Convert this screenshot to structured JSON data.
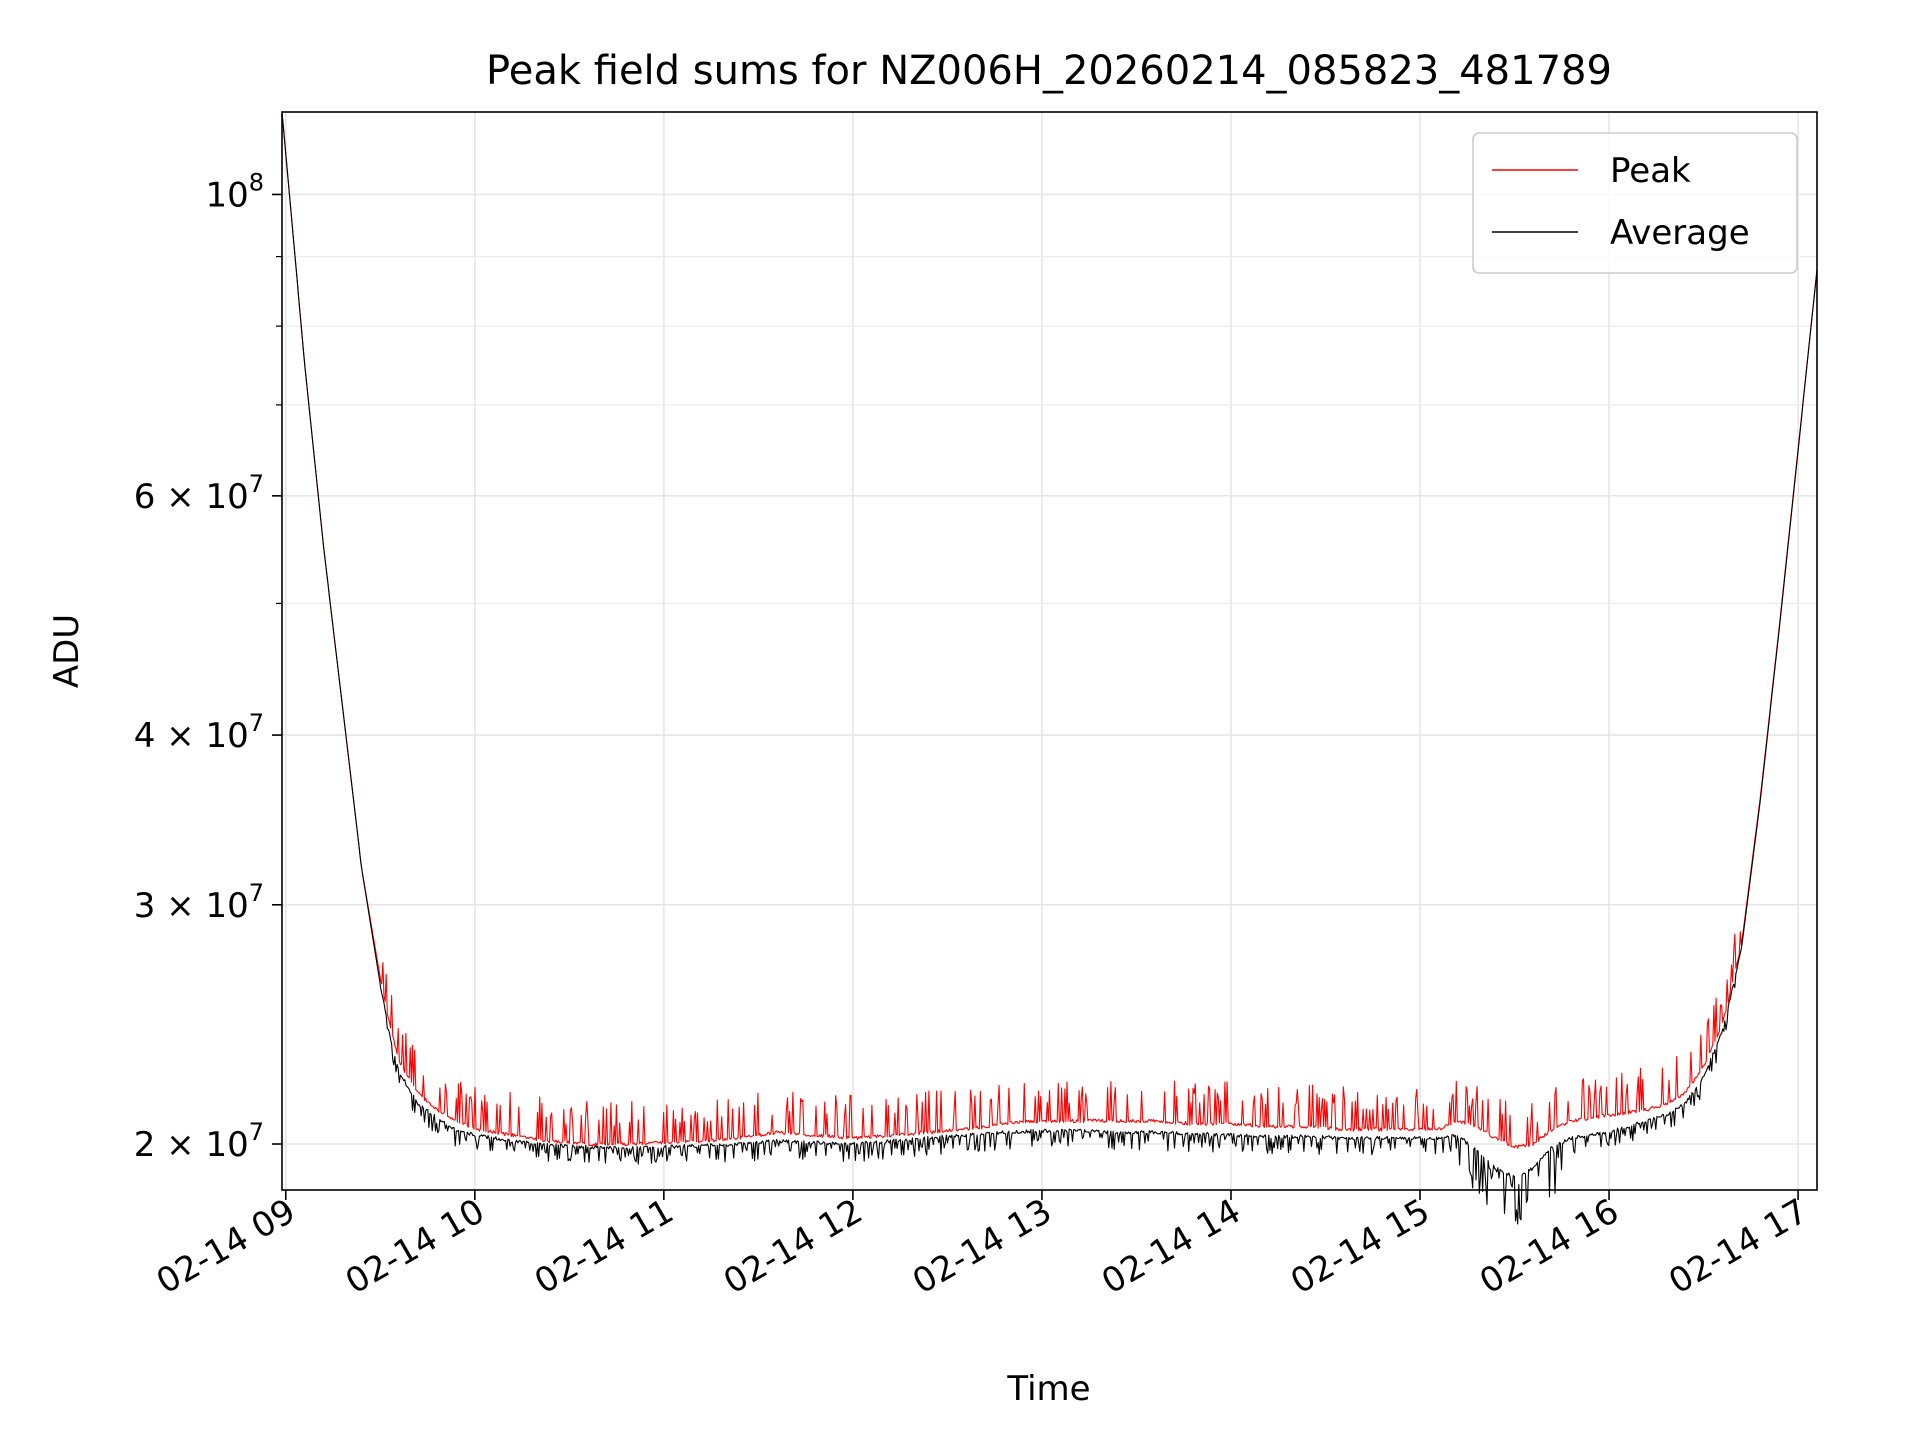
{
  "chart_data": {
    "type": "line",
    "title": "Peak field sums for NZ006H_20260214_085823_481789",
    "xlabel": "Time",
    "ylabel": "ADU",
    "y_scale": "log",
    "ylim": [
      18500000,
      115000000
    ],
    "xlim": [
      8.98,
      17.1
    ],
    "grid": true,
    "legend_position": "upper right",
    "x_ticks": [
      {
        "value": 9,
        "label": "02-14 09"
      },
      {
        "value": 10,
        "label": "02-14 10"
      },
      {
        "value": 11,
        "label": "02-14 11"
      },
      {
        "value": 12,
        "label": "02-14 12"
      },
      {
        "value": 13,
        "label": "02-14 13"
      },
      {
        "value": 14,
        "label": "02-14 14"
      },
      {
        "value": 15,
        "label": "02-14 15"
      },
      {
        "value": 16,
        "label": "02-14 16"
      },
      {
        "value": 17,
        "label": "02-14 17"
      }
    ],
    "y_ticks": [
      {
        "value": 20000000,
        "mantissa": "2",
        "exponent": "7"
      },
      {
        "value": 30000000,
        "mantissa": "3",
        "exponent": "7"
      },
      {
        "value": 40000000,
        "mantissa": "4",
        "exponent": "7"
      },
      {
        "value": 60000000,
        "mantissa": "6",
        "exponent": "7"
      },
      {
        "value": 100000000,
        "mantissa": "",
        "exponent": "8"
      }
    ],
    "y_minor_ticks": [
      50000000,
      70000000,
      80000000,
      90000000
    ],
    "series": [
      {
        "name": "Peak",
        "color": "#ff0000",
        "x": [
          8.98,
          9.1,
          9.2,
          9.3,
          9.4,
          9.5,
          9.55,
          9.6,
          9.7,
          9.8,
          9.9,
          10.0,
          10.2,
          10.4,
          10.6,
          10.8,
          11.0,
          11.2,
          11.4,
          11.6,
          11.8,
          12.0,
          12.2,
          12.4,
          12.6,
          12.8,
          13.0,
          13.2,
          13.4,
          13.6,
          13.8,
          14.0,
          14.2,
          14.4,
          14.6,
          14.8,
          15.0,
          15.1,
          15.2,
          15.3,
          15.4,
          15.5,
          15.6,
          15.7,
          15.8,
          15.9,
          16.0,
          16.1,
          16.2,
          16.3,
          16.4,
          16.5,
          16.6,
          16.7,
          16.8,
          16.9,
          17.0,
          17.1
        ],
        "y": [
          115000000,
          75000000,
          55000000,
          42000000,
          32000000,
          26500000,
          24500000,
          23000000,
          21800000,
          21200000,
          20800000,
          20500000,
          20300000,
          20100000,
          20000000,
          20000000,
          20050000,
          20100000,
          20200000,
          20400000,
          20300000,
          20200000,
          20300000,
          20400000,
          20500000,
          20700000,
          20800000,
          20800000,
          20800000,
          20800000,
          20700000,
          20700000,
          20600000,
          20600000,
          20500000,
          20500000,
          20500000,
          20500000,
          20800000,
          20600000,
          20200000,
          19900000,
          20000000,
          20500000,
          20800000,
          20900000,
          21000000,
          21100000,
          21200000,
          21400000,
          21800000,
          22800000,
          24500000,
          28000000,
          36000000,
          48000000,
          65000000,
          88000000
        ]
      },
      {
        "name": "Average",
        "color": "#000000",
        "x": [
          8.98,
          9.1,
          9.2,
          9.3,
          9.4,
          9.5,
          9.55,
          9.6,
          9.7,
          9.8,
          9.9,
          10.0,
          10.2,
          10.4,
          10.6,
          10.8,
          11.0,
          11.2,
          11.4,
          11.6,
          11.8,
          12.0,
          12.2,
          12.4,
          12.6,
          12.8,
          13.0,
          13.2,
          13.4,
          13.6,
          13.8,
          14.0,
          14.2,
          14.4,
          14.6,
          14.8,
          15.0,
          15.1,
          15.2,
          15.3,
          15.4,
          15.5,
          15.6,
          15.7,
          15.8,
          15.9,
          16.0,
          16.1,
          16.2,
          16.3,
          16.4,
          16.5,
          16.6,
          16.7,
          16.8,
          16.9,
          17.0,
          17.1
        ],
        "y": [
          115000000,
          75000000,
          55000000,
          42000000,
          32000000,
          26200000,
          24000000,
          22600000,
          21400000,
          20900000,
          20500000,
          20300000,
          20100000,
          19950000,
          19900000,
          19850000,
          19900000,
          19950000,
          20000000,
          20100000,
          20050000,
          20000000,
          20100000,
          20200000,
          20300000,
          20400000,
          20450000,
          20450000,
          20400000,
          20400000,
          20350000,
          20300000,
          20250000,
          20250000,
          20200000,
          20200000,
          20200000,
          20200000,
          20300000,
          19800000,
          19200000,
          18900000,
          19200000,
          19900000,
          20200000,
          20300000,
          20400000,
          20600000,
          20800000,
          21000000,
          21400000,
          22400000,
          24200000,
          27800000,
          35800000,
          47800000,
          64800000,
          88000000
        ]
      }
    ]
  }
}
